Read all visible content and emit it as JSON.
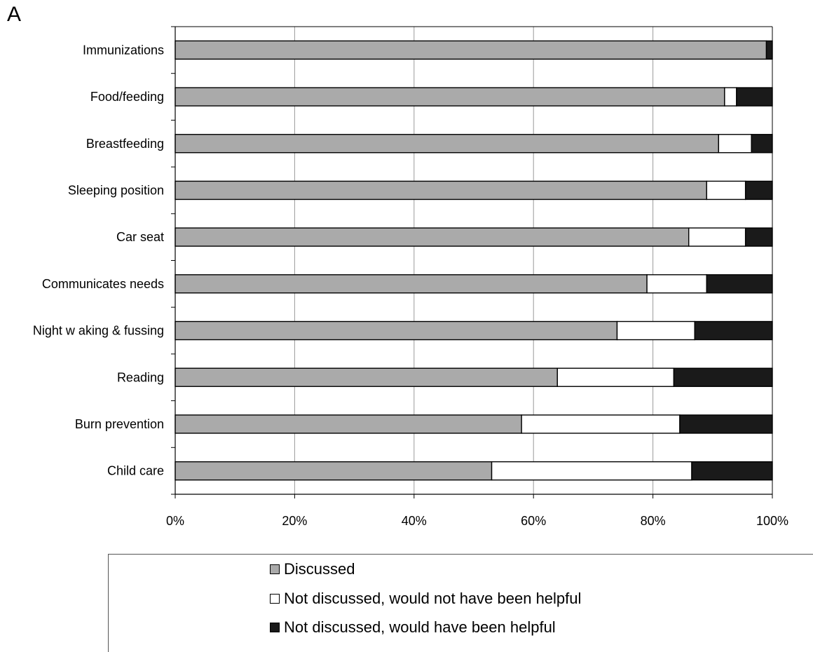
{
  "panel_label": "A",
  "colors": {
    "discussed": "#aaaaaa",
    "not_helpful": "#ffffff",
    "helpful": "#1a1a1a",
    "grid": "#9a9a9a"
  },
  "legend": [
    {
      "label": "Discussed",
      "color": "#aaaaaa"
    },
    {
      "label": "Not discussed, would not have been helpful",
      "color": "#ffffff"
    },
    {
      "label": "Not discussed, would have been helpful",
      "color": "#1a1a1a"
    }
  ],
  "chart_data": {
    "type": "bar",
    "orientation": "horizontal",
    "stacked": "percent",
    "title": "",
    "xlabel": "",
    "ylabel": "",
    "xlim": [
      0,
      100
    ],
    "x_ticks": [
      "0%",
      "20%",
      "40%",
      "60%",
      "80%",
      "100%"
    ],
    "categories": [
      "Immunizations",
      "Food/feeding",
      "Breastfeeding",
      "Sleeping position",
      "Car seat",
      "Communicates needs",
      "Night w aking & fussing",
      "Reading",
      "Burn prevention",
      "Child care"
    ],
    "series": [
      {
        "name": "Discussed",
        "values": [
          99,
          92,
          91,
          89,
          86,
          79,
          74,
          64,
          58,
          53
        ]
      },
      {
        "name": "Not discussed, would not have been helpful",
        "values": [
          0,
          2,
          5.5,
          6.5,
          9.5,
          10,
          13,
          19.5,
          26.5,
          33.5
        ]
      },
      {
        "name": "Not discussed, would have been helpful",
        "values": [
          1,
          6,
          3.5,
          4.5,
          4.5,
          11,
          13,
          16.5,
          15.5,
          13.5
        ]
      }
    ],
    "grid": true,
    "legend_position": "bottom"
  }
}
